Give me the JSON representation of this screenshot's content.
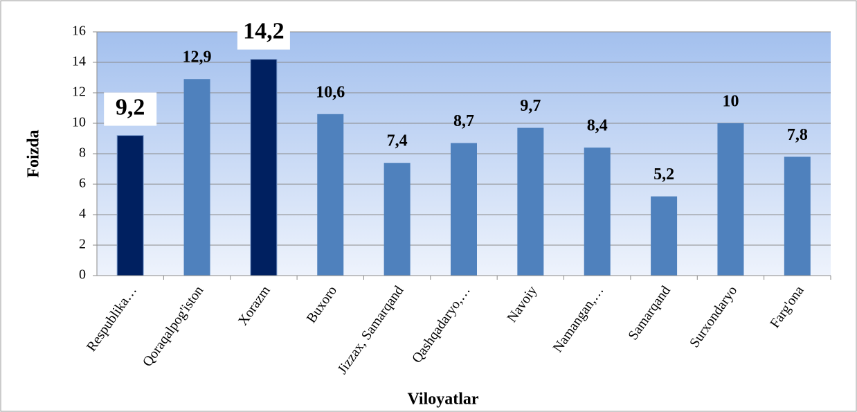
{
  "chart_data": {
    "type": "bar",
    "y_label": "Foizda",
    "x_label": "Viloyatlar",
    "categories": [
      "Respublika…",
      "Qoraqalpog'iston",
      "Xorazm",
      "Buxoro",
      "Jizzax, Samarqand",
      "Qashqadaryo,…",
      "Navoiy",
      "Namangan,…",
      "Samarqand",
      "Surxondaryo",
      "Farg'ona"
    ],
    "values": [
      9.2,
      12.9,
      14.2,
      10.6,
      7.4,
      8.7,
      9.7,
      8.4,
      5.2,
      10,
      7.8
    ],
    "value_labels": [
      "9,2",
      "12,9",
      "14,2",
      "10,6",
      "7,4",
      "8,7",
      "9,7",
      "8,4",
      "5,2",
      "10",
      "7,8"
    ],
    "colors": [
      "#002060",
      "#4f81bd",
      "#002060",
      "#4f81bd",
      "#4f81bd",
      "#4f81bd",
      "#4f81bd",
      "#4f81bd",
      "#4f81bd",
      "#4f81bd",
      "#4f81bd"
    ],
    "highlight_color": "#002060",
    "ylim": [
      0,
      16
    ],
    "yticks": [
      0,
      2,
      4,
      6,
      8,
      10,
      12,
      14,
      16
    ],
    "grid": true
  }
}
